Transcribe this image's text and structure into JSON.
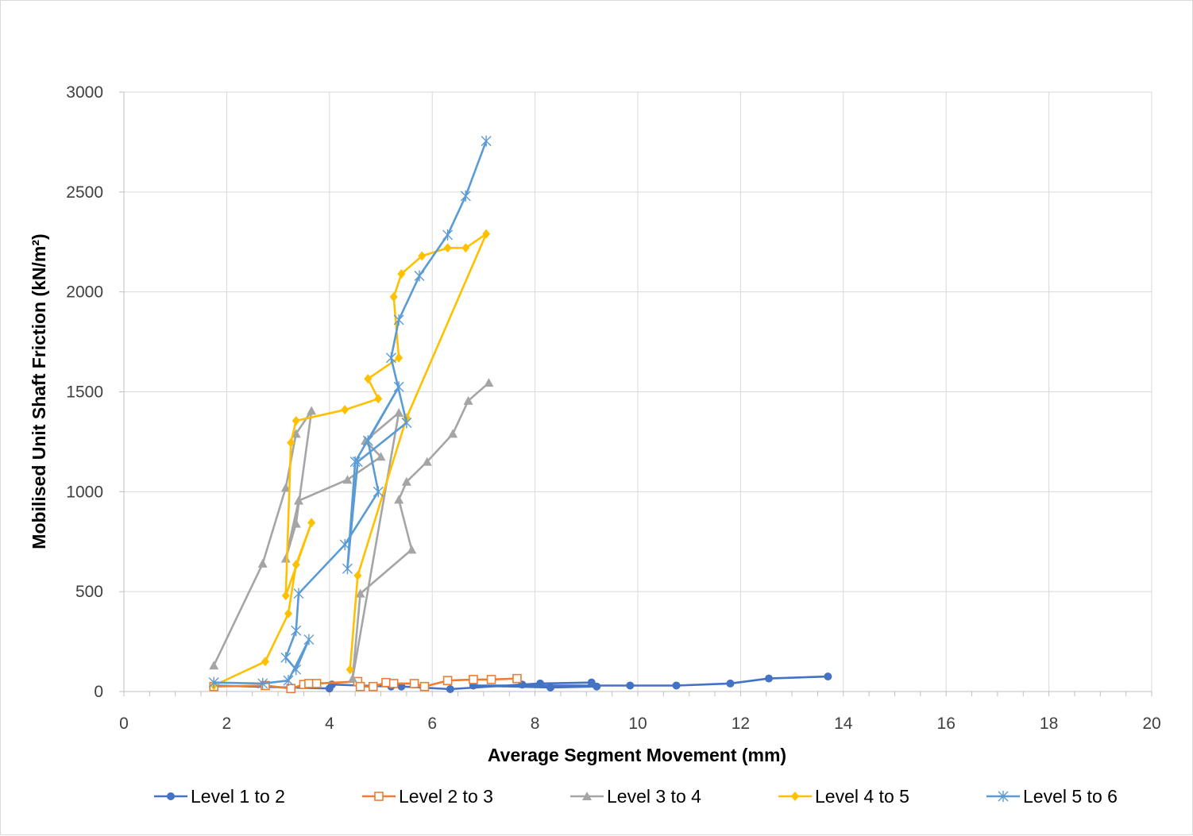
{
  "chart_data": {
    "type": "scatter",
    "mode": "lines+markers",
    "xlabel": "Average Segment Movement (mm)",
    "ylabel": "Mobilised Unit Shaft Friction (kN/m²)",
    "xlim": [
      0,
      20
    ],
    "ylim": [
      0,
      3000
    ],
    "xticks": [
      0,
      2,
      4,
      6,
      8,
      10,
      12,
      14,
      16,
      18,
      20
    ],
    "yticks": [
      0,
      500,
      1000,
      1500,
      2000,
      2500,
      3000
    ],
    "grid": true,
    "legend_position": "bottom",
    "series": [
      {
        "name": "Level 1 to 2",
        "color": "#4472c4",
        "marker": "circle",
        "points": [
          [
            1.75,
            30
          ],
          [
            4.0,
            15
          ],
          [
            4.05,
            35
          ],
          [
            4.6,
            30
          ],
          [
            5.2,
            25
          ],
          [
            5.4,
            25
          ],
          [
            6.35,
            12
          ],
          [
            7.75,
            35
          ],
          [
            8.1,
            40
          ],
          [
            9.1,
            45
          ],
          [
            9.2,
            25
          ],
          [
            8.3,
            20
          ],
          [
            6.8,
            30
          ],
          [
            9.85,
            30
          ],
          [
            10.75,
            30
          ],
          [
            11.8,
            40
          ],
          [
            12.55,
            65
          ],
          [
            13.7,
            75
          ]
        ]
      },
      {
        "name": "Level 2 to 3",
        "color": "#ed7d31",
        "marker": "square-open",
        "points": [
          [
            1.75,
            25
          ],
          [
            2.75,
            30
          ],
          [
            3.25,
            15
          ],
          [
            3.5,
            35
          ],
          [
            3.6,
            40
          ],
          [
            3.75,
            40
          ],
          [
            4.55,
            50
          ],
          [
            4.6,
            25
          ],
          [
            4.85,
            25
          ],
          [
            5.1,
            45
          ],
          [
            5.25,
            40
          ],
          [
            5.65,
            40
          ],
          [
            5.85,
            25
          ],
          [
            6.3,
            55
          ],
          [
            6.8,
            60
          ],
          [
            7.15,
            60
          ],
          [
            7.65,
            65
          ]
        ]
      },
      {
        "name": "Level 3 to 4",
        "color": "#a5a5a5",
        "marker": "triangle",
        "points": [
          [
            1.75,
            130
          ],
          [
            2.7,
            640
          ],
          [
            3.15,
            1020
          ],
          [
            3.35,
            1290
          ],
          [
            3.65,
            1405
          ],
          [
            3.35,
            840
          ],
          [
            3.15,
            665
          ],
          [
            3.4,
            955
          ],
          [
            4.35,
            1060
          ],
          [
            5.0,
            1175
          ],
          [
            4.7,
            1255
          ],
          [
            5.35,
            1395
          ],
          [
            4.45,
            65
          ],
          [
            4.6,
            490
          ],
          [
            5.6,
            710
          ],
          [
            5.35,
            960
          ],
          [
            5.5,
            1050
          ],
          [
            5.9,
            1150
          ],
          [
            6.4,
            1290
          ],
          [
            6.7,
            1455
          ],
          [
            7.1,
            1545
          ]
        ]
      },
      {
        "name": "Level 4 to 5",
        "color": "#ffc000",
        "marker": "diamond",
        "points": [
          [
            1.75,
            30
          ],
          [
            2.75,
            150
          ],
          [
            3.2,
            390
          ],
          [
            3.35,
            635
          ],
          [
            3.65,
            845
          ],
          [
            3.15,
            480
          ],
          [
            3.25,
            1245
          ],
          [
            3.35,
            1355
          ],
          [
            4.3,
            1410
          ],
          [
            4.95,
            1465
          ],
          [
            4.75,
            1565
          ],
          [
            5.35,
            1670
          ],
          [
            5.25,
            1975
          ],
          [
            5.4,
            2090
          ],
          [
            5.8,
            2180
          ],
          [
            6.3,
            2220
          ],
          [
            6.65,
            2220
          ],
          [
            7.05,
            2290
          ],
          [
            5.5,
            1370
          ],
          [
            4.55,
            580
          ],
          [
            4.4,
            110
          ]
        ]
      },
      {
        "name": "Level 5 to 6",
        "color": "#5b9bd5",
        "marker": "star",
        "points": [
          [
            1.75,
            45
          ],
          [
            2.7,
            40
          ],
          [
            3.2,
            55
          ],
          [
            3.6,
            260
          ],
          [
            3.35,
            110
          ],
          [
            3.15,
            170
          ],
          [
            3.35,
            305
          ],
          [
            3.4,
            490
          ],
          [
            4.3,
            735
          ],
          [
            4.95,
            1000
          ],
          [
            4.75,
            1255
          ],
          [
            5.35,
            1525
          ],
          [
            4.5,
            1150
          ],
          [
            4.35,
            615
          ],
          [
            4.55,
            1150
          ],
          [
            5.5,
            1345
          ],
          [
            5.2,
            1670
          ],
          [
            5.35,
            1860
          ],
          [
            5.75,
            2080
          ],
          [
            6.3,
            2285
          ],
          [
            6.65,
            2480
          ],
          [
            7.05,
            2755
          ]
        ]
      }
    ]
  }
}
